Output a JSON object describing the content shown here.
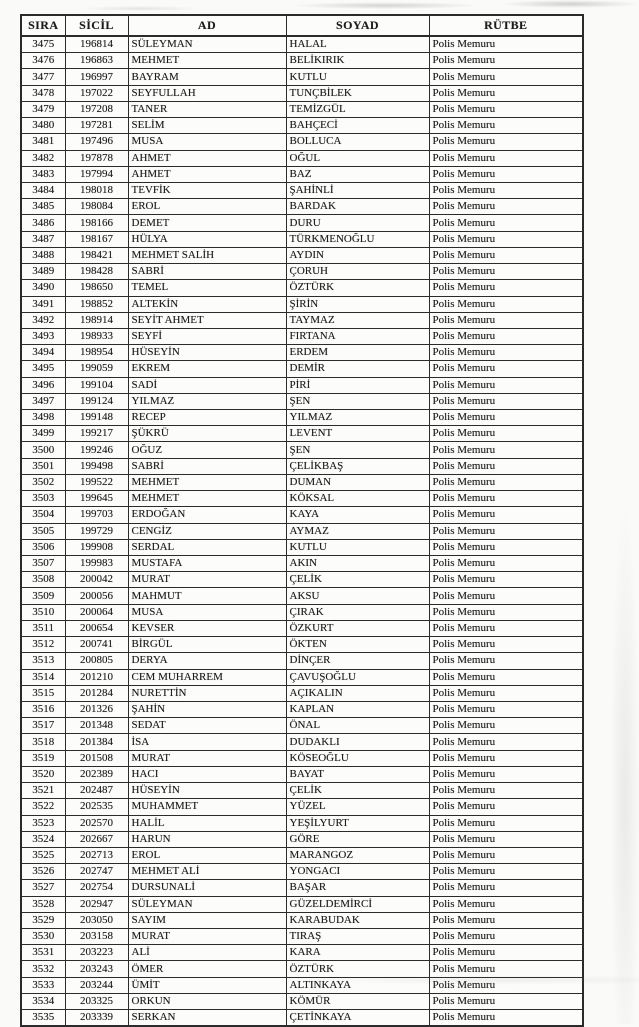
{
  "document": {
    "kind": "scanned-personnel-list",
    "rank_value": "Polis Memuru",
    "columns": [
      {
        "key": "0",
        "label": "SIRA"
      },
      {
        "key": "1",
        "label": "SİCİL"
      },
      {
        "key": "2",
        "label": "AD"
      },
      {
        "key": "3",
        "label": "SOYAD"
      },
      {
        "key": "4",
        "label": "RÜTBE"
      }
    ],
    "rows": [
      [
        "3475",
        "196814",
        "SÜLEYMAN",
        "HALAL",
        "Polis Memuru"
      ],
      [
        "3476",
        "196863",
        "MEHMET",
        "BELİKIRIK",
        "Polis Memuru"
      ],
      [
        "3477",
        "196997",
        "BAYRAM",
        "KUTLU",
        "Polis Memuru"
      ],
      [
        "3478",
        "197022",
        "SEYFULLAH",
        "TUNÇBİLEK",
        "Polis Memuru"
      ],
      [
        "3479",
        "197208",
        "TANER",
        "TEMİZGÜL",
        "Polis Memuru"
      ],
      [
        "3480",
        "197281",
        "SELİM",
        "BAHÇECİ",
        "Polis Memuru"
      ],
      [
        "3481",
        "197496",
        "MUSA",
        "BOLLUCA",
        "Polis Memuru"
      ],
      [
        "3482",
        "197878",
        "AHMET",
        "OĞUL",
        "Polis Memuru"
      ],
      [
        "3483",
        "197994",
        "AHMET",
        "BAZ",
        "Polis Memuru"
      ],
      [
        "3484",
        "198018",
        "TEVFİK",
        "ŞAHİNLİ",
        "Polis Memuru"
      ],
      [
        "3485",
        "198084",
        "EROL",
        "BARDAK",
        "Polis Memuru"
      ],
      [
        "3486",
        "198166",
        "DEMET",
        "DURU",
        "Polis Memuru"
      ],
      [
        "3487",
        "198167",
        "HÜLYA",
        "TÜRKMENOĞLU",
        "Polis Memuru"
      ],
      [
        "3488",
        "198421",
        "MEHMET SALİH",
        "AYDIN",
        "Polis Memuru"
      ],
      [
        "3489",
        "198428",
        "SABRİ",
        "ÇORUH",
        "Polis Memuru"
      ],
      [
        "3490",
        "198650",
        "TEMEL",
        "ÖZTÜRK",
        "Polis Memuru"
      ],
      [
        "3491",
        "198852",
        "ALTEKİN",
        "ŞİRİN",
        "Polis Memuru"
      ],
      [
        "3492",
        "198914",
        "SEYİT AHMET",
        "TAYMAZ",
        "Polis Memuru"
      ],
      [
        "3493",
        "198933",
        "SEYFİ",
        "FIRTANA",
        "Polis Memuru"
      ],
      [
        "3494",
        "198954",
        "HÜSEYİN",
        "ERDEM",
        "Polis Memuru"
      ],
      [
        "3495",
        "199059",
        "EKREM",
        "DEMİR",
        "Polis Memuru"
      ],
      [
        "3496",
        "199104",
        "SADİ",
        "PİRİ",
        "Polis Memuru"
      ],
      [
        "3497",
        "199124",
        "YILMAZ",
        "ŞEN",
        "Polis Memuru"
      ],
      [
        "3498",
        "199148",
        "RECEP",
        "YILMAZ",
        "Polis Memuru"
      ],
      [
        "3499",
        "199217",
        "ŞÜKRÜ",
        "LEVENT",
        "Polis Memuru"
      ],
      [
        "3500",
        "199246",
        "OĞUZ",
        "ŞEN",
        "Polis Memuru"
      ],
      [
        "3501",
        "199498",
        "SABRİ",
        "ÇELİKBAŞ",
        "Polis Memuru"
      ],
      [
        "3502",
        "199522",
        "MEHMET",
        "DUMAN",
        "Polis Memuru"
      ],
      [
        "3503",
        "199645",
        "MEHMET",
        "KÖKSAL",
        "Polis Memuru"
      ],
      [
        "3504",
        "199703",
        "ERDOĞAN",
        "KAYA",
        "Polis Memuru"
      ],
      [
        "3505",
        "199729",
        "CENGİZ",
        "AYMAZ",
        "Polis Memuru"
      ],
      [
        "3506",
        "199908",
        "SERDAL",
        "KUTLU",
        "Polis Memuru"
      ],
      [
        "3507",
        "199983",
        "MUSTAFA",
        "AKIN",
        "Polis Memuru"
      ],
      [
        "3508",
        "200042",
        "MURAT",
        "ÇELİK",
        "Polis Memuru"
      ],
      [
        "3509",
        "200056",
        "MAHMUT",
        "AKSU",
        "Polis Memuru"
      ],
      [
        "3510",
        "200064",
        "MUSA",
        "ÇIRAK",
        "Polis Memuru"
      ],
      [
        "3511",
        "200654",
        "KEVSER",
        "ÖZKURT",
        "Polis Memuru"
      ],
      [
        "3512",
        "200741",
        "BİRGÜL",
        "ÖKTEN",
        "Polis Memuru"
      ],
      [
        "3513",
        "200805",
        "DERYA",
        "DİNÇER",
        "Polis Memuru"
      ],
      [
        "3514",
        "201210",
        "CEM MUHARREM",
        "ÇAVUŞOĞLU",
        "Polis Memuru"
      ],
      [
        "3515",
        "201284",
        "NURETTİN",
        "AÇIKALIN",
        "Polis Memuru"
      ],
      [
        "3516",
        "201326",
        "ŞAHİN",
        "KAPLAN",
        "Polis Memuru"
      ],
      [
        "3517",
        "201348",
        "SEDAT",
        "ÖNAL",
        "Polis Memuru"
      ],
      [
        "3518",
        "201384",
        "İSA",
        "DUDAKLI",
        "Polis Memuru"
      ],
      [
        "3519",
        "201508",
        "MURAT",
        "KÖSEOĞLU",
        "Polis Memuru"
      ],
      [
        "3520",
        "202389",
        "HACI",
        "BAYAT",
        "Polis Memuru"
      ],
      [
        "3521",
        "202487",
        "HÜSEYİN",
        "ÇELİK",
        "Polis Memuru"
      ],
      [
        "3522",
        "202535",
        "MUHAMMET",
        "YÜZEL",
        "Polis Memuru"
      ],
      [
        "3523",
        "202570",
        "HALİL",
        "YEŞİLYURT",
        "Polis Memuru"
      ],
      [
        "3524",
        "202667",
        "HARUN",
        "GÖRE",
        "Polis Memuru"
      ],
      [
        "3525",
        "202713",
        "EROL",
        "MARANGOZ",
        "Polis Memuru"
      ],
      [
        "3526",
        "202747",
        "MEHMET ALİ",
        "YONGACI",
        "Polis Memuru"
      ],
      [
        "3527",
        "202754",
        "DURSUNALİ",
        "BAŞAR",
        "Polis Memuru"
      ],
      [
        "3528",
        "202947",
        "SÜLEYMAN",
        "GÜZELDEMİRCİ",
        "Polis Memuru"
      ],
      [
        "3529",
        "203050",
        "SAYIM",
        "KARABUDAK",
        "Polis Memuru"
      ],
      [
        "3530",
        "203158",
        "MURAT",
        "TIRAŞ",
        "Polis Memuru"
      ],
      [
        "3531",
        "203223",
        "ALİ",
        "KARA",
        "Polis Memuru"
      ],
      [
        "3532",
        "203243",
        "ÖMER",
        "ÖZTÜRK",
        "Polis Memuru"
      ],
      [
        "3533",
        "203244",
        "ÜMİT",
        "ALTINKAYA",
        "Polis Memuru"
      ],
      [
        "3534",
        "203325",
        "ORKUN",
        "KÖMÜR",
        "Polis Memuru"
      ],
      [
        "3535",
        "203339",
        "SERKAN",
        "ÇETİNKAYA",
        "Polis Memuru"
      ]
    ]
  }
}
